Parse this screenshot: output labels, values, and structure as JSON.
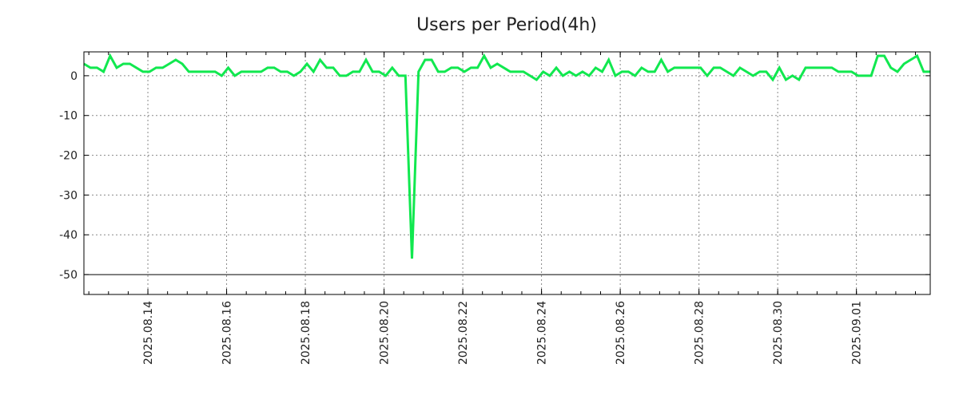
{
  "chart_data": {
    "type": "line",
    "title": "Users per Period(4h)",
    "xlabel": "",
    "ylabel": "",
    "x_start": "2025-08-12T09:00:00",
    "x_interval_hours": 4,
    "ylim": [
      -55,
      6
    ],
    "yticks": [
      0,
      -10,
      -20,
      -30,
      -40,
      -50
    ],
    "xticks": [
      "2025.08.14",
      "2025.08.16",
      "2025.08.18",
      "2025.08.20",
      "2025.08.22",
      "2025.08.24",
      "2025.08.26",
      "2025.08.28",
      "2025.08.30",
      "2025.09.01"
    ],
    "grid": true,
    "legend": "none",
    "series": [
      {
        "name": "Users",
        "color": "#11e84f",
        "values": [
          3,
          2,
          2,
          1,
          5,
          2,
          3,
          3,
          2,
          1,
          1,
          2,
          2,
          3,
          4,
          3,
          1,
          1,
          1,
          1,
          1,
          0,
          2,
          0,
          1,
          1,
          1,
          1,
          2,
          2,
          1,
          1,
          0,
          1,
          3,
          1,
          4,
          2,
          2,
          0,
          0,
          1,
          1,
          4,
          1,
          1,
          0,
          2,
          0,
          0,
          -46,
          1,
          4,
          4,
          1,
          1,
          2,
          2,
          1,
          2,
          2,
          5,
          2,
          3,
          2,
          1,
          1,
          1,
          0,
          -1,
          1,
          0,
          2,
          0,
          1,
          0,
          1,
          0,
          2,
          1,
          4,
          0,
          1,
          1,
          0,
          2,
          1,
          1,
          4,
          1,
          2,
          2,
          2,
          2,
          2,
          0,
          2,
          2,
          1,
          0,
          2,
          1,
          0,
          1,
          1,
          -1,
          2,
          -1,
          0,
          -1,
          2,
          2,
          2,
          2,
          2,
          1,
          1,
          1,
          0,
          0,
          0,
          5,
          5,
          2,
          1,
          3,
          4,
          5,
          1,
          1
        ]
      }
    ]
  }
}
